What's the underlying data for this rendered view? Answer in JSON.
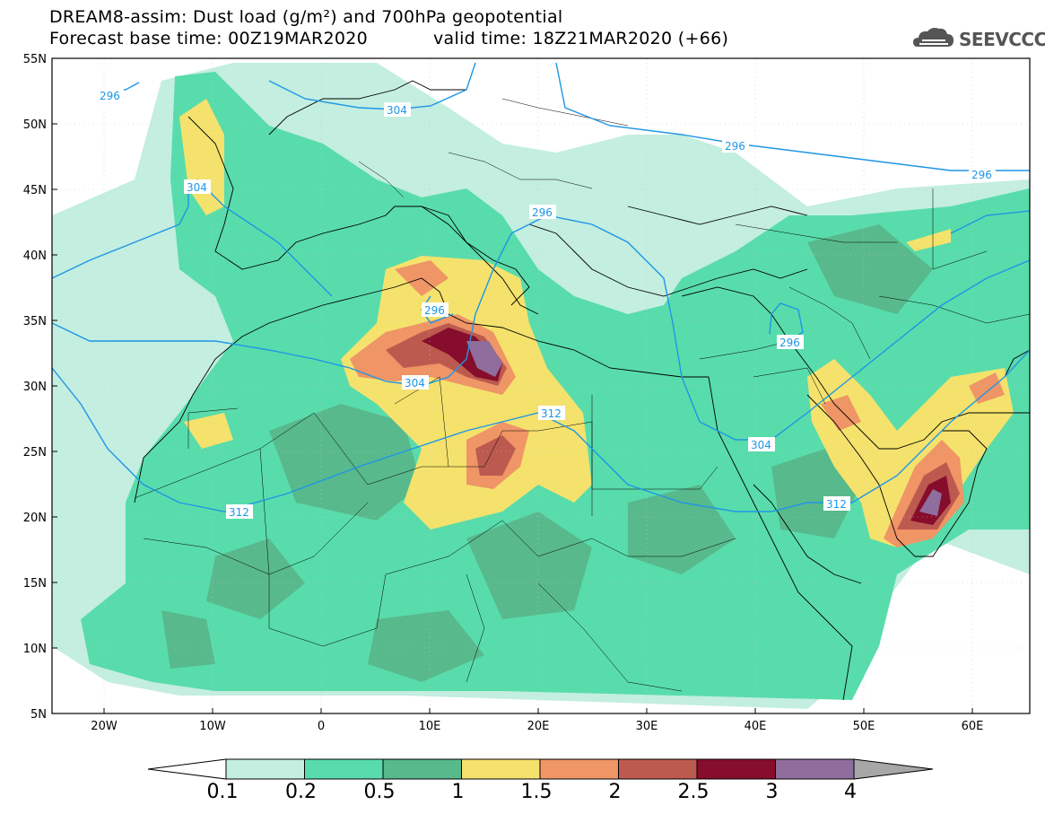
{
  "header": {
    "title": "DREAM8-assim: Dust load (g/m²) and 700hPa geopotential",
    "base_time": "Forecast base time: 00Z19MAR2020",
    "valid_time": "valid time: 18Z21MAR2020 (+66)",
    "logo_text": "SEEVCCC",
    "logo_icon": "cloud-icon"
  },
  "map": {
    "lat_labels": [
      "55N",
      "50N",
      "45N",
      "40N",
      "35N",
      "30N",
      "25N",
      "20N",
      "15N",
      "10N",
      "5N"
    ],
    "lon_labels": [
      "20W",
      "10W",
      "0",
      "10E",
      "20E",
      "30E",
      "40E",
      "50E",
      "60E"
    ],
    "contour_labels": [
      "296",
      "304",
      "296",
      "304",
      "296",
      "296",
      "304",
      "312",
      "312",
      "304",
      "312",
      "296",
      "296"
    ],
    "grid": true
  },
  "colorbar": {
    "labels": [
      "0.1",
      "0.2",
      "0.5",
      "1",
      "1.5",
      "2",
      "2.5",
      "3",
      "4"
    ],
    "colors": [
      "#c3eee0",
      "#58dcab",
      "#58b98c",
      "#f4e26d",
      "#ef9566",
      "#bd5a4f",
      "#860d2b",
      "#8f6d9d",
      "#a7a7a7"
    ]
  }
}
